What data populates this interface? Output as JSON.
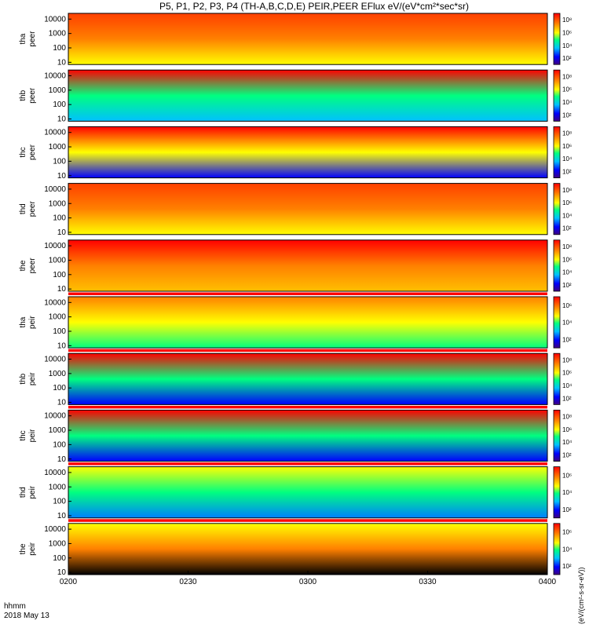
{
  "title": "P5, P1, P2, P3, P4 (TH-A,B,C,D,E) PEIR,PEER EFlux eV/(eV*cm²*sec*sr)",
  "time_axis": {
    "row_label": "hhmm",
    "date_label": "2018 May 13",
    "ticks": [
      "0200",
      "0230",
      "0300",
      "0330",
      "0400"
    ],
    "start": "02:00",
    "end": "04:00"
  },
  "colorbar_label": "eV/(cm²-s-sr-eV)",
  "colorbar_units_short": "(eV/(cm²-s-sr-eV))",
  "chart_data": {
    "type": "heatmap",
    "x_label": "hhmm",
    "x_range": [
      "0200",
      "0400"
    ],
    "y_scale": "log",
    "y_ticks": [
      "10",
      "100",
      "1000",
      "10000"
    ],
    "panels": [
      {
        "name": "tha",
        "species": "peer",
        "ylabel": "tha peer",
        "ylim": [
          7,
          25000
        ],
        "cbar_ticks": [
          "10²",
          "10⁴",
          "10⁶",
          "10⁸"
        ],
        "has_flag_bar": false,
        "dominant_colors": [
          "#ff4000",
          "#ff8000",
          "#ffff00"
        ]
      },
      {
        "name": "thb",
        "species": "peer",
        "ylabel": "thb peer",
        "ylim": [
          7,
          25000
        ],
        "cbar_ticks": [
          "10²",
          "10⁴",
          "10⁶",
          "10⁸"
        ],
        "has_flag_bar": false,
        "dominant_colors": [
          "#ff0000",
          "#00ff80",
          "#00c0ff"
        ]
      },
      {
        "name": "thc",
        "species": "peer",
        "ylabel": "thc peer",
        "ylim": [
          7,
          25000
        ],
        "cbar_ticks": [
          "10²",
          "10⁴",
          "10⁶",
          "10⁸"
        ],
        "has_flag_bar": false,
        "dominant_colors": [
          "#ff0000",
          "#ffff00",
          "#0000ff"
        ]
      },
      {
        "name": "thd",
        "species": "peer",
        "ylabel": "thd peer",
        "ylim": [
          7,
          25000
        ],
        "cbar_ticks": [
          "10²",
          "10⁴",
          "10⁶",
          "10⁸"
        ],
        "has_flag_bar": false,
        "dominant_colors": [
          "#ff4000",
          "#ff8000",
          "#ffff00"
        ]
      },
      {
        "name": "the",
        "species": "peer",
        "ylabel": "the peer",
        "ylim": [
          7,
          25000
        ],
        "cbar_ticks": [
          "10²",
          "10⁴",
          "10⁶",
          "10⁸"
        ],
        "has_flag_bar": true,
        "dominant_colors": [
          "#ff0000",
          "#ff8000",
          "#ffc000"
        ]
      },
      {
        "name": "tha",
        "species": "peir",
        "ylabel": "tha peir",
        "ylim": [
          7,
          25000
        ],
        "cbar_ticks": [
          "10²",
          "10⁴",
          "10⁶"
        ],
        "has_flag_bar": true,
        "dominant_colors": [
          "#ff8000",
          "#ffff00",
          "#00ff80"
        ]
      },
      {
        "name": "thb",
        "species": "peir",
        "ylabel": "thb peir",
        "ylim": [
          7,
          25000
        ],
        "cbar_ticks": [
          "10²",
          "10⁴",
          "10⁶",
          "10⁸"
        ],
        "has_flag_bar": true,
        "dominant_colors": [
          "#ff0000",
          "#00ff80",
          "#0000ff"
        ]
      },
      {
        "name": "thc",
        "species": "peir",
        "ylabel": "thc peir",
        "ylim": [
          7,
          25000
        ],
        "cbar_ticks": [
          "10²",
          "10⁴",
          "10⁶",
          "10⁸"
        ],
        "has_flag_bar": true,
        "dominant_colors": [
          "#ff0000",
          "#00ff80",
          "#0000ff"
        ]
      },
      {
        "name": "thd",
        "species": "peir",
        "ylabel": "thd peir",
        "ylim": [
          7,
          25000
        ],
        "cbar_ticks": [
          "10²",
          "10⁴",
          "10⁶"
        ],
        "has_flag_bar": true,
        "dominant_colors": [
          "#ffff00",
          "#00ff80",
          "#0080ff"
        ]
      },
      {
        "name": "the",
        "species": "peir",
        "ylabel": "the peir",
        "ylim": [
          7,
          25000
        ],
        "cbar_ticks": [
          "10²",
          "10⁴",
          "10⁶"
        ],
        "has_flag_bar": false,
        "dominant_colors": [
          "#ffff00",
          "#ff8000",
          "#000000"
        ]
      }
    ]
  },
  "colors": {
    "flag_red": "#ff0000",
    "flag_yellow": "#ffff00",
    "flag_black": "#000000",
    "axis": "#000000",
    "background": "#ffffff"
  }
}
